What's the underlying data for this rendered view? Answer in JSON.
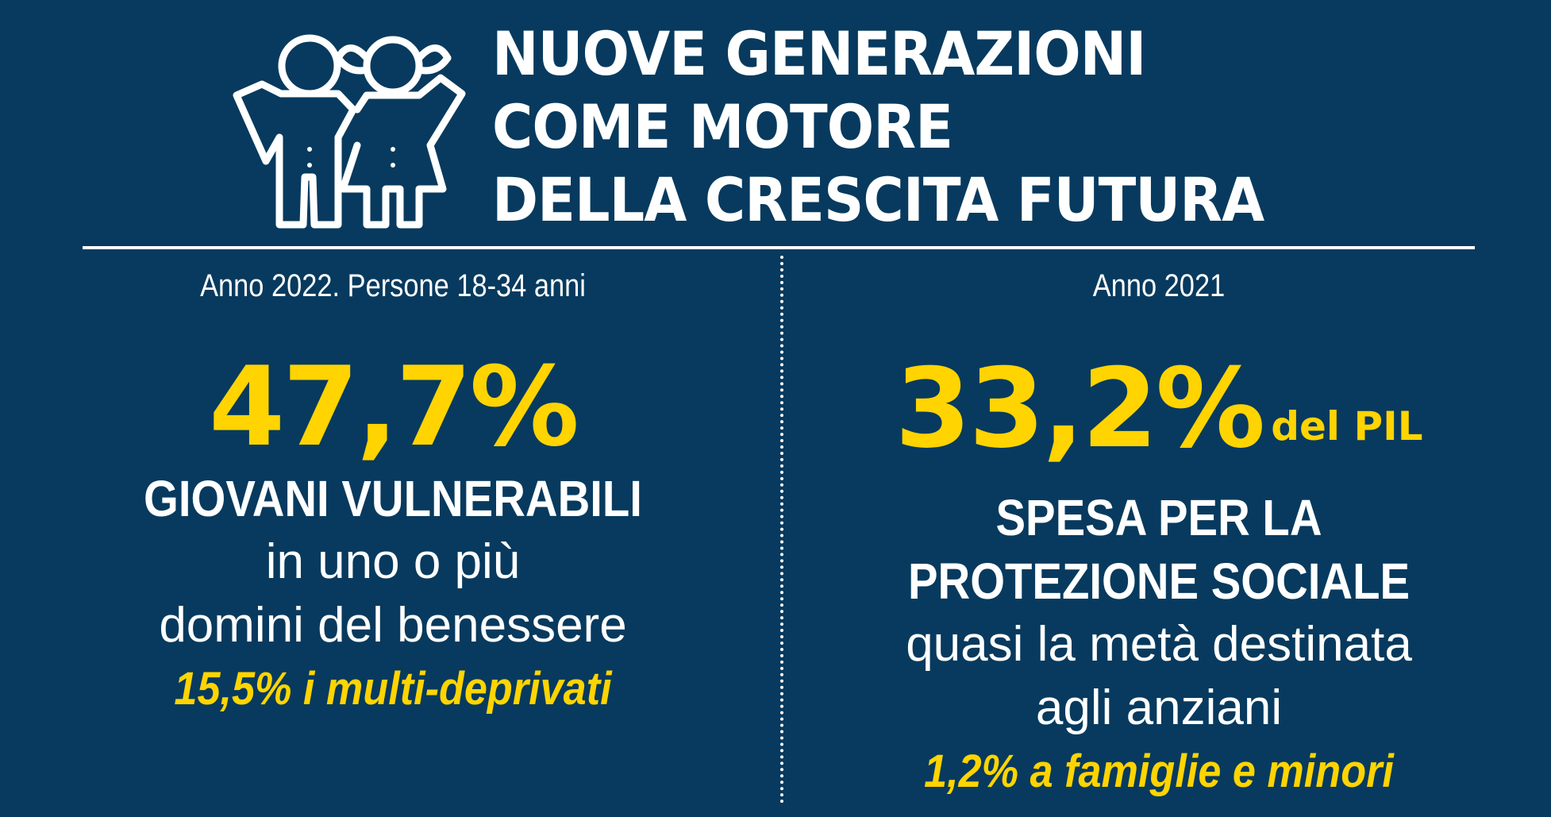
{
  "header": {
    "icon": "children-icon",
    "title_lines": [
      "NUOVE GENERAZIONI",
      "COME MOTORE",
      "DELLA CRESCITA FUTURA"
    ]
  },
  "left_panel": {
    "subtitle": "Anno 2022. Persone 18-34 anni",
    "big_number": "47,7%",
    "headline": "GIOVANI VULNERABILI",
    "body_lines": [
      "in uno o più",
      "domini del benessere"
    ],
    "highlight": "15,5% i multi-deprivati"
  },
  "right_panel": {
    "subtitle": "Anno 2021",
    "big_number": "33,2%",
    "big_number_suffix": "del PIL",
    "headline_lines": [
      "SPESA PER LA",
      "PROTEZIONE SOCIALE"
    ],
    "body_lines": [
      "quasi la metà destinata",
      "agli anziani"
    ],
    "highlight": "1,2% a famiglie e minori"
  },
  "colors": {
    "background": "#073a5e",
    "accent": "#ffd400",
    "text": "#ffffff"
  }
}
